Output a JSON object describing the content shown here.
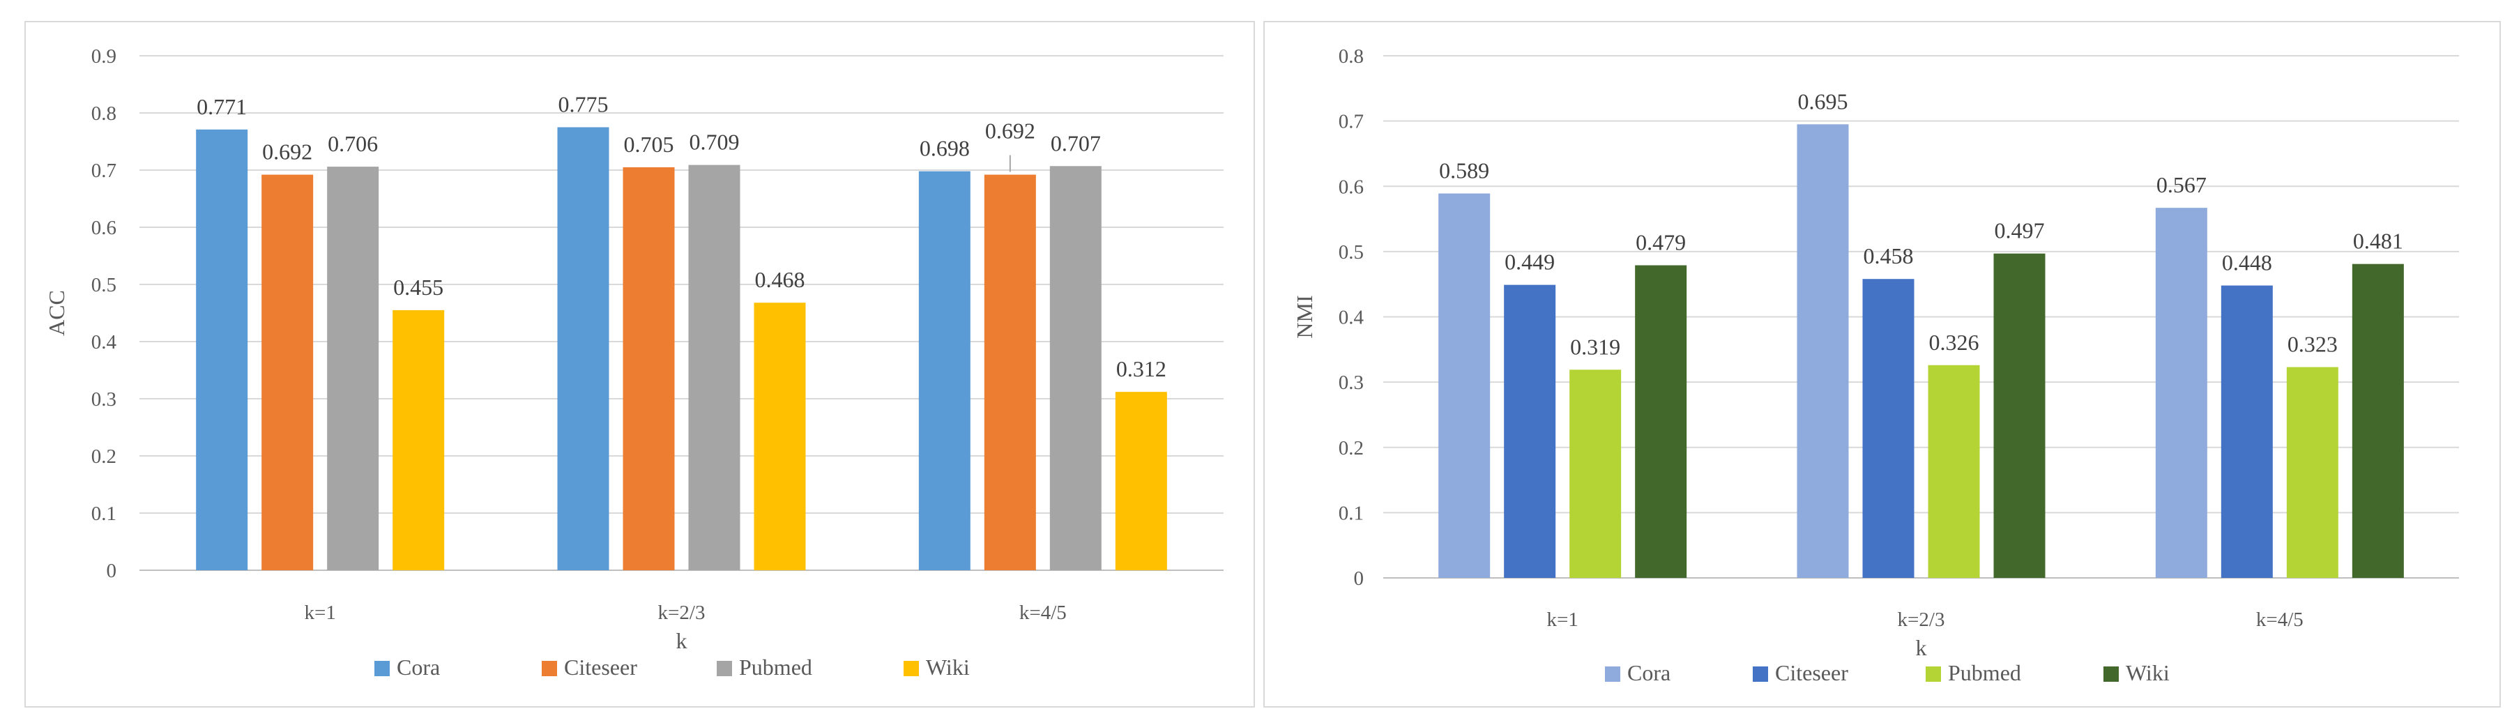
{
  "chart_data": [
    {
      "type": "bar",
      "title": "",
      "xlabel": "k",
      "ylabel": "ACC",
      "ylim": [
        0,
        0.9
      ],
      "ytick_step": 0.1,
      "yticks": [
        "0",
        "0.1",
        "0.2",
        "0.3",
        "0.4",
        "0.5",
        "0.6",
        "0.7",
        "0.8",
        "0.9"
      ],
      "grid": true,
      "legend_position": "bottom",
      "categories": [
        "k=1",
        "k=2/3",
        "k=4/5"
      ],
      "series": [
        {
          "name": "Cora",
          "color": "#5b9bd5",
          "values": [
            0.771,
            0.775,
            0.698
          ],
          "labels": [
            "0.771",
            "0.775",
            "0.698"
          ]
        },
        {
          "name": "Citeseer",
          "color": "#ed7d31",
          "values": [
            0.692,
            0.705,
            0.692
          ],
          "labels": [
            "0.692",
            "0.705",
            "0.692"
          ]
        },
        {
          "name": "Pubmed",
          "color": "#a5a5a5",
          "values": [
            0.706,
            0.709,
            0.707
          ],
          "labels": [
            "0.706",
            "0.709",
            "0.707"
          ]
        },
        {
          "name": "Wiki",
          "color": "#ffc000",
          "values": [
            0.455,
            0.468,
            0.312
          ],
          "labels": [
            "0.455",
            "0.468",
            "0.312"
          ]
        }
      ]
    },
    {
      "type": "bar",
      "title": "",
      "xlabel": "k",
      "ylabel": "NMI",
      "ylim": [
        0,
        0.8
      ],
      "ytick_step": 0.1,
      "yticks": [
        "0",
        "0.1",
        "0.2",
        "0.3",
        "0.4",
        "0.5",
        "0.6",
        "0.7",
        "0.8"
      ],
      "grid": true,
      "legend_position": "bottom",
      "categories": [
        "k=1",
        "k=2/3",
        "k=4/5"
      ],
      "series": [
        {
          "name": "Cora",
          "color": "#8faadc",
          "values": [
            0.589,
            0.695,
            0.567
          ],
          "labels": [
            "0.589",
            "0.695",
            "0.567"
          ]
        },
        {
          "name": "Citeseer",
          "color": "#4472c4",
          "values": [
            0.449,
            0.458,
            0.448
          ],
          "labels": [
            "0.449",
            "0.458",
            "0.448"
          ]
        },
        {
          "name": "Pubmed",
          "color": "#b4d334",
          "values": [
            0.319,
            0.326,
            0.323
          ],
          "labels": [
            "0.319",
            "0.326",
            "0.323"
          ]
        },
        {
          "name": "Wiki",
          "color": "#43682b",
          "values": [
            0.479,
            0.497,
            0.481
          ],
          "labels": [
            "0.479",
            "0.497",
            "0.481"
          ]
        }
      ]
    }
  ]
}
